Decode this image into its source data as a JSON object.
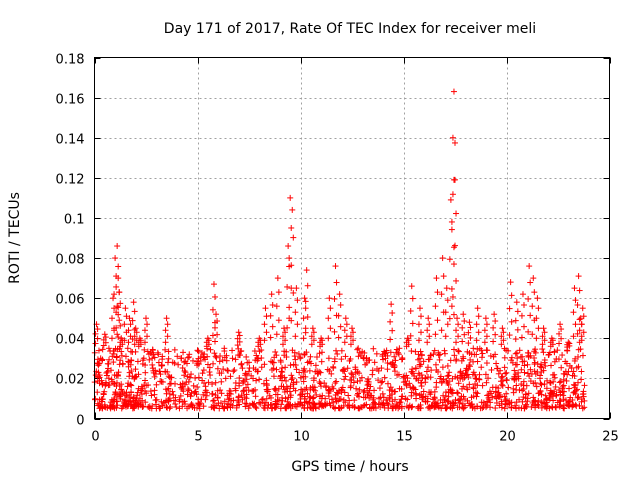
{
  "chart_data": {
    "type": "scatter",
    "title": "Day 171 of 2017, Rate Of TEC Index for receiver meli",
    "xlabel": "GPS time / hours",
    "ylabel": "ROTI / TECUs",
    "xlim": [
      0,
      25
    ],
    "ylim": [
      0,
      0.18
    ],
    "xticks": [
      0,
      5,
      10,
      15,
      20,
      25
    ],
    "yticks": [
      0,
      0.02,
      0.04,
      0.06,
      0.08,
      0.1,
      0.12,
      0.14,
      0.16,
      0.18
    ],
    "xtick_labels": [
      "0",
      "5",
      "10",
      "15",
      "20",
      "25"
    ],
    "ytick_labels": [
      "0",
      "0.02",
      "0.04",
      "0.06",
      "0.08",
      "0.1",
      "0.12",
      "0.14",
      "0.16",
      "0.18"
    ],
    "grid": true,
    "marker": "+",
    "color": "#ff0000",
    "series": [
      {
        "name": "ROTI",
        "x": [
          0.1,
          0.3,
          0.5,
          0.7,
          0.9,
          1.0,
          1.1,
          1.15,
          1.2,
          1.3,
          1.5,
          1.7,
          1.9,
          2.0,
          2.2,
          2.5,
          2.8,
          3.1,
          3.5,
          3.8,
          4.2,
          4.6,
          5.0,
          5.5,
          5.8,
          5.9,
          6.3,
          6.7,
          7.0,
          7.5,
          8.0,
          8.3,
          8.6,
          8.9,
          9.2,
          9.4,
          9.5,
          9.6,
          9.8,
          10.2,
          10.3,
          10.6,
          11.0,
          11.4,
          11.7,
          11.9,
          12.2,
          12.5,
          12.8,
          13.2,
          13.6,
          14.0,
          14.4,
          14.8,
          15.2,
          15.4,
          15.8,
          16.2,
          16.6,
          16.9,
          17.1,
          17.3,
          17.4,
          17.45,
          17.5,
          17.6,
          17.9,
          18.2,
          18.6,
          19.0,
          19.4,
          19.8,
          20.2,
          20.5,
          20.8,
          21.1,
          21.3,
          21.5,
          21.8,
          22.2,
          22.6,
          23.0,
          23.3,
          23.5,
          23.6,
          23.7
        ],
        "y": [
          0.047,
          0.03,
          0.042,
          0.035,
          0.06,
          0.08,
          0.086,
          0.07,
          0.063,
          0.04,
          0.055,
          0.05,
          0.058,
          0.045,
          0.04,
          0.05,
          0.03,
          0.032,
          0.05,
          0.028,
          0.03,
          0.032,
          0.034,
          0.04,
          0.067,
          0.052,
          0.035,
          0.03,
          0.043,
          0.028,
          0.04,
          0.055,
          0.062,
          0.07,
          0.045,
          0.086,
          0.11,
          0.104,
          0.065,
          0.06,
          0.074,
          0.045,
          0.04,
          0.06,
          0.076,
          0.062,
          0.05,
          0.045,
          0.035,
          0.03,
          0.028,
          0.032,
          0.057,
          0.035,
          0.04,
          0.066,
          0.055,
          0.05,
          0.07,
          0.08,
          0.065,
          0.109,
          0.14,
          0.163,
          0.119,
          0.05,
          0.052,
          0.048,
          0.055,
          0.05,
          0.052,
          0.045,
          0.068,
          0.058,
          0.062,
          0.076,
          0.07,
          0.06,
          0.045,
          0.04,
          0.047,
          0.038,
          0.065,
          0.071,
          0.05,
          0.055
        ],
        "baseline_band": [
          0.005,
          0.035
        ]
      }
    ]
  }
}
